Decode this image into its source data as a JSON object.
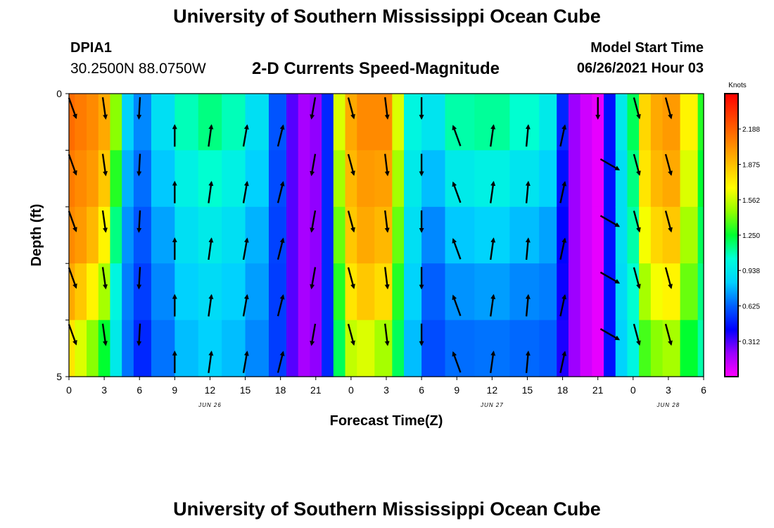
{
  "header": {
    "title": "University of Southern Mississippi Ocean Cube",
    "station_id": "DPIA1",
    "coords": "30.2500N  88.0750W",
    "chart_title": "2-D Currents Speed-Magnitude",
    "model_start_label": "Model Start Time",
    "model_start_value": "06/26/2021 Hour 03"
  },
  "footer": {
    "title": "University of Southern Mississippi Ocean Cube"
  },
  "colors": {
    "stops": [
      "#ff00ff",
      "#9a00ff",
      "#0000ff",
      "#0060ff",
      "#00d0ff",
      "#00ffd8",
      "#00ff30",
      "#90ff00",
      "#ffff00",
      "#ffc000",
      "#ff8000",
      "#ff4000",
      "#ff0000"
    ],
    "arrow": "#000000",
    "frame": "#000000"
  },
  "chart_data": {
    "type": "heatmap",
    "title": "2-D Currents Speed-Magnitude",
    "xlabel": "Forecast Time(Z)",
    "ylabel": "Depth (ft)",
    "x_range_hours": [
      0,
      54
    ],
    "ylim": [
      0,
      5
    ],
    "y_ticks": [
      "0",
      "5"
    ],
    "x_tick_labels": [
      "0",
      "3",
      "6",
      "9",
      "12",
      "15",
      "18",
      "21",
      "0",
      "3",
      "6",
      "9",
      "12",
      "15",
      "18",
      "21",
      "0",
      "3",
      "6"
    ],
    "date_labels": [
      {
        "text": "JUN 26",
        "hour": 12
      },
      {
        "text": "JUN 27",
        "hour": 36
      },
      {
        "text": "JUN 28",
        "hour": 51
      }
    ],
    "colorbar": {
      "unit": "Knots",
      "min": 0,
      "max": 2.5,
      "tick_labels": [
        "2.188",
        "1.875",
        "1.562",
        "1.250",
        "0.938",
        "0.625",
        "0.312"
      ]
    },
    "depth_layers": 5,
    "speed_knots_by_hour": [
      {
        "hour": 0,
        "values": [
          2.15,
          2.1,
          2.05,
          1.95,
          1.75
        ]
      },
      {
        "hour": 1,
        "values": [
          2.1,
          2.05,
          2.0,
          1.85,
          1.6
        ]
      },
      {
        "hour": 2,
        "values": [
          2.05,
          2.0,
          1.9,
          1.7,
          1.45
        ]
      },
      {
        "hour": 3,
        "values": [
          1.95,
          1.85,
          1.7,
          1.5,
          1.25
        ]
      },
      {
        "hour": 4,
        "values": [
          1.45,
          1.3,
          1.15,
          1.0,
          0.95
        ]
      },
      {
        "hour": 5,
        "values": [
          0.85,
          0.78,
          0.72,
          0.68,
          0.66
        ]
      },
      {
        "hour": 6,
        "values": [
          0.7,
          0.65,
          0.6,
          0.55,
          0.5
        ]
      },
      {
        "hour": 8,
        "values": [
          0.9,
          0.82,
          0.75,
          0.7,
          0.66
        ]
      },
      {
        "hour": 10,
        "values": [
          1.08,
          0.98,
          0.9,
          0.84,
          0.8
        ]
      },
      {
        "hour": 12,
        "values": [
          1.15,
          1.05,
          0.95,
          0.88,
          0.84
        ]
      },
      {
        "hour": 14,
        "values": [
          1.08,
          0.98,
          0.9,
          0.84,
          0.8
        ]
      },
      {
        "hour": 16,
        "values": [
          0.9,
          0.84,
          0.78,
          0.74,
          0.7
        ]
      },
      {
        "hour": 18,
        "values": [
          0.6,
          0.58,
          0.56,
          0.55,
          0.55
        ]
      },
      {
        "hour": 19,
        "values": [
          0.3,
          0.3,
          0.3,
          0.3,
          0.3
        ]
      },
      {
        "hour": 20,
        "values": [
          0.18,
          0.18,
          0.18,
          0.18,
          0.18
        ]
      },
      {
        "hour": 21,
        "values": [
          0.22,
          0.22,
          0.22,
          0.22,
          0.22
        ]
      },
      {
        "hour": 22,
        "values": [
          0.5,
          0.5,
          0.5,
          0.5,
          0.5
        ]
      },
      {
        "hour": 23,
        "values": [
          1.6,
          1.5,
          1.4,
          1.3,
          1.2
        ]
      },
      {
        "hour": 24,
        "values": [
          1.95,
          1.9,
          1.85,
          1.75,
          1.55
        ]
      },
      {
        "hour": 25,
        "values": [
          2.05,
          2.0,
          1.95,
          1.85,
          1.6
        ]
      },
      {
        "hour": 27,
        "values": [
          2.05,
          1.98,
          1.9,
          1.78,
          1.5
        ]
      },
      {
        "hour": 28,
        "values": [
          1.6,
          1.5,
          1.4,
          1.3,
          1.2
        ]
      },
      {
        "hour": 29,
        "values": [
          1.0,
          0.95,
          0.9,
          0.85,
          0.8
        ]
      },
      {
        "hour": 31,
        "values": [
          0.92,
          0.8,
          0.7,
          0.62,
          0.58
        ]
      },
      {
        "hour": 33,
        "values": [
          1.1,
          0.95,
          0.82,
          0.72,
          0.65
        ]
      },
      {
        "hour": 36,
        "values": [
          1.12,
          0.98,
          0.85,
          0.74,
          0.66
        ]
      },
      {
        "hour": 39,
        "values": [
          1.05,
          0.92,
          0.8,
          0.7,
          0.64
        ]
      },
      {
        "hour": 41,
        "values": [
          0.95,
          0.85,
          0.75,
          0.68,
          0.62
        ]
      },
      {
        "hour": 42,
        "values": [
          0.5,
          0.45,
          0.42,
          0.4,
          0.38
        ]
      },
      {
        "hour": 43,
        "values": [
          0.2,
          0.2,
          0.2,
          0.2,
          0.2
        ]
      },
      {
        "hour": 44,
        "values": [
          0.1,
          0.1,
          0.1,
          0.1,
          0.1
        ]
      },
      {
        "hour": 45,
        "values": [
          0.05,
          0.05,
          0.05,
          0.05,
          0.05
        ]
      },
      {
        "hour": 46,
        "values": [
          0.45,
          0.45,
          0.45,
          0.45,
          0.45
        ]
      },
      {
        "hour": 47,
        "values": [
          0.95,
          0.9,
          0.9,
          0.88,
          0.85
        ]
      },
      {
        "hour": 48,
        "values": [
          1.2,
          1.15,
          1.1,
          1.05,
          1.0
        ]
      },
      {
        "hour": 49,
        "values": [
          1.8,
          1.75,
          1.65,
          1.5,
          1.35
        ]
      },
      {
        "hour": 50,
        "values": [
          1.95,
          1.9,
          1.8,
          1.65,
          1.45
        ]
      },
      {
        "hour": 51,
        "values": [
          2.0,
          1.95,
          1.85,
          1.7,
          1.5
        ]
      },
      {
        "hour": 53,
        "values": [
          1.7,
          1.6,
          1.5,
          1.4,
          1.25
        ]
      },
      {
        "hour": 54,
        "values": [
          1.3,
          1.25,
          1.2,
          1.15,
          1.1
        ]
      }
    ],
    "arrows": [
      {
        "hour": 0.3,
        "direction_deg": 160,
        "depths": [
          0.25,
          1.25,
          2.25,
          3.25,
          4.25
        ]
      },
      {
        "hour": 3,
        "direction_deg": 172,
        "depths": [
          0.25,
          1.25,
          2.25,
          3.25,
          4.25
        ]
      },
      {
        "hour": 6,
        "direction_deg": 183,
        "depths": [
          0.25,
          1.25,
          2.25,
          3.25,
          4.25
        ]
      },
      {
        "hour": 9,
        "direction_deg": 0,
        "depths": [
          0.75,
          1.75,
          2.75,
          3.75,
          4.75
        ]
      },
      {
        "hour": 12,
        "direction_deg": 8,
        "depths": [
          0.75,
          1.75,
          2.75,
          3.75,
          4.75
        ]
      },
      {
        "hour": 15,
        "direction_deg": 10,
        "depths": [
          0.75,
          1.75,
          2.75,
          3.75,
          4.75
        ]
      },
      {
        "hour": 18,
        "direction_deg": 14,
        "depths": [
          0.75,
          1.75,
          2.75,
          3.75,
          4.75
        ]
      },
      {
        "hour": 20.8,
        "direction_deg": 190,
        "depths": [
          0.25,
          1.25,
          2.25,
          3.25,
          4.25
        ]
      },
      {
        "hour": 24,
        "direction_deg": 165,
        "depths": [
          0.25,
          1.25,
          2.25,
          3.25,
          4.25
        ]
      },
      {
        "hour": 27,
        "direction_deg": 173,
        "depths": [
          0.25,
          1.25,
          2.25,
          3.25,
          4.25
        ]
      },
      {
        "hour": 30,
        "direction_deg": 180,
        "depths": [
          0.25,
          1.25,
          2.25,
          3.25,
          4.25
        ]
      },
      {
        "hour": 33,
        "direction_deg": 340,
        "depths": [
          0.75,
          1.75,
          2.75,
          3.75,
          4.75
        ]
      },
      {
        "hour": 36,
        "direction_deg": 8,
        "depths": [
          0.75,
          1.75,
          2.75,
          3.75,
          4.75
        ]
      },
      {
        "hour": 39,
        "direction_deg": 5,
        "depths": [
          0.75,
          1.75,
          2.75,
          3.75,
          4.75
        ]
      },
      {
        "hour": 42,
        "direction_deg": 12,
        "depths": [
          0.75,
          1.75,
          2.75,
          3.75,
          4.75
        ]
      },
      {
        "hour": 45,
        "direction_deg": 180,
        "depths": [
          0.25
        ]
      },
      {
        "hour": 46,
        "direction_deg": 120,
        "depths": [
          1.25,
          2.25,
          3.25,
          4.25
        ]
      },
      {
        "hour": 48.3,
        "direction_deg": 165,
        "depths": [
          0.25,
          1.25,
          2.25,
          3.25,
          4.25
        ]
      },
      {
        "hour": 51,
        "direction_deg": 165,
        "depths": [
          0.25,
          1.25,
          2.25,
          3.25,
          4.25
        ]
      }
    ]
  }
}
